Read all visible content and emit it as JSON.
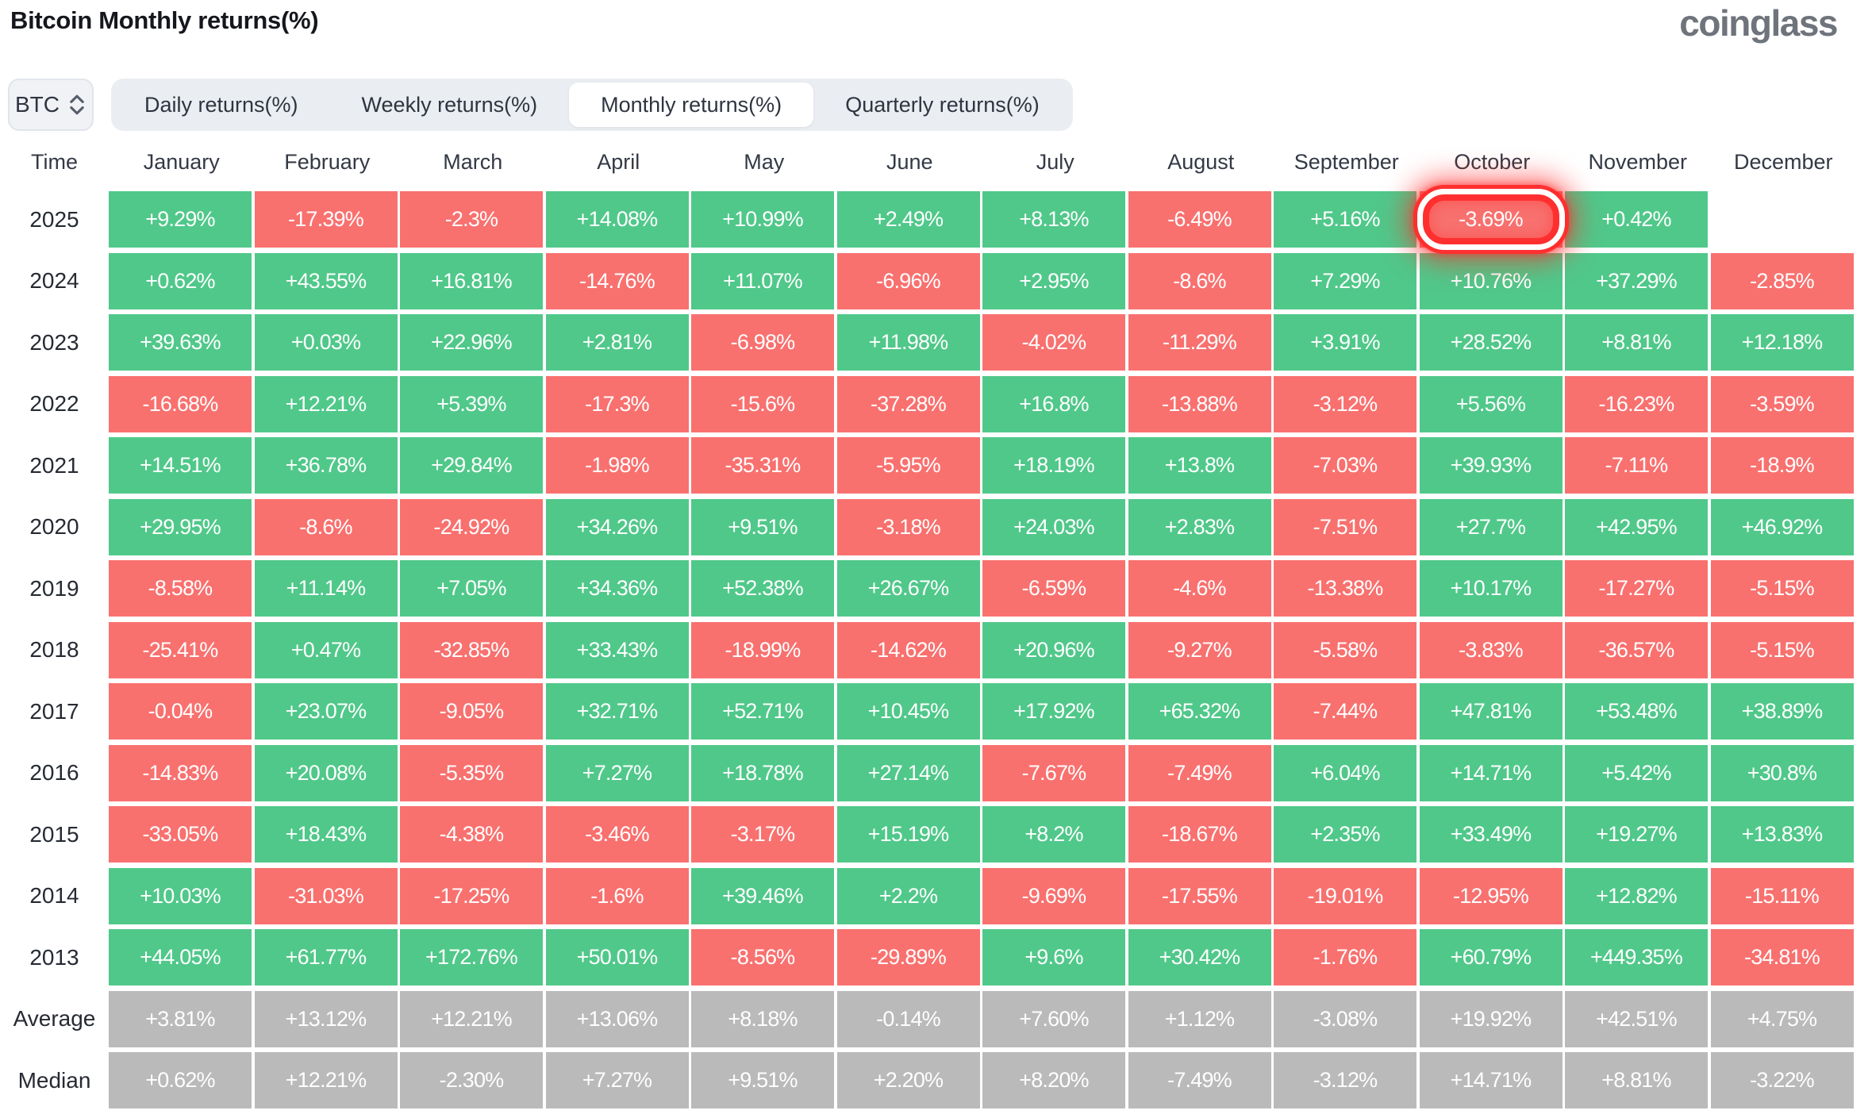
{
  "header": {
    "title": "Bitcoin Monthly returns(%)",
    "logo": "coinglass"
  },
  "controls": {
    "symbol_select": {
      "value": "BTC",
      "icon": "sort-updown-icon"
    },
    "tabs": [
      {
        "label": "Daily returns(%)",
        "active": false
      },
      {
        "label": "Weekly returns(%)",
        "active": false
      },
      {
        "label": "Monthly returns(%)",
        "active": true
      },
      {
        "label": "Quarterly returns(%)",
        "active": false
      }
    ]
  },
  "chart_data": {
    "type": "heatmap",
    "title": "Bitcoin Monthly returns(%)",
    "unit": "%",
    "legend_position": "none",
    "grid": false,
    "columns": [
      "Time",
      "January",
      "February",
      "March",
      "April",
      "May",
      "June",
      "July",
      "August",
      "September",
      "October",
      "November",
      "December"
    ],
    "rows": [
      {
        "label": "2025",
        "type": "year",
        "values": [
          "+9.29%",
          "-17.39%",
          "-2.3%",
          "+14.08%",
          "+10.99%",
          "+2.49%",
          "+8.13%",
          "-6.49%",
          "+5.16%",
          "-3.69%",
          "+0.42%",
          ""
        ]
      },
      {
        "label": "2024",
        "type": "year",
        "values": [
          "+0.62%",
          "+43.55%",
          "+16.81%",
          "-14.76%",
          "+11.07%",
          "-6.96%",
          "+2.95%",
          "-8.6%",
          "+7.29%",
          "+10.76%",
          "+37.29%",
          "-2.85%"
        ]
      },
      {
        "label": "2023",
        "type": "year",
        "values": [
          "+39.63%",
          "+0.03%",
          "+22.96%",
          "+2.81%",
          "-6.98%",
          "+11.98%",
          "-4.02%",
          "-11.29%",
          "+3.91%",
          "+28.52%",
          "+8.81%",
          "+12.18%"
        ]
      },
      {
        "label": "2022",
        "type": "year",
        "values": [
          "-16.68%",
          "+12.21%",
          "+5.39%",
          "-17.3%",
          "-15.6%",
          "-37.28%",
          "+16.8%",
          "-13.88%",
          "-3.12%",
          "+5.56%",
          "-16.23%",
          "-3.59%"
        ]
      },
      {
        "label": "2021",
        "type": "year",
        "values": [
          "+14.51%",
          "+36.78%",
          "+29.84%",
          "-1.98%",
          "-35.31%",
          "-5.95%",
          "+18.19%",
          "+13.8%",
          "-7.03%",
          "+39.93%",
          "-7.11%",
          "-18.9%"
        ]
      },
      {
        "label": "2020",
        "type": "year",
        "values": [
          "+29.95%",
          "-8.6%",
          "-24.92%",
          "+34.26%",
          "+9.51%",
          "-3.18%",
          "+24.03%",
          "+2.83%",
          "-7.51%",
          "+27.7%",
          "+42.95%",
          "+46.92%"
        ]
      },
      {
        "label": "2019",
        "type": "year",
        "values": [
          "-8.58%",
          "+11.14%",
          "+7.05%",
          "+34.36%",
          "+52.38%",
          "+26.67%",
          "-6.59%",
          "-4.6%",
          "-13.38%",
          "+10.17%",
          "-17.27%",
          "-5.15%"
        ]
      },
      {
        "label": "2018",
        "type": "year",
        "values": [
          "-25.41%",
          "+0.47%",
          "-32.85%",
          "+33.43%",
          "-18.99%",
          "-14.62%",
          "+20.96%",
          "-9.27%",
          "-5.58%",
          "-3.83%",
          "-36.57%",
          "-5.15%"
        ]
      },
      {
        "label": "2017",
        "type": "year",
        "values": [
          "-0.04%",
          "+23.07%",
          "-9.05%",
          "+32.71%",
          "+52.71%",
          "+10.45%",
          "+17.92%",
          "+65.32%",
          "-7.44%",
          "+47.81%",
          "+53.48%",
          "+38.89%"
        ]
      },
      {
        "label": "2016",
        "type": "year",
        "values": [
          "-14.83%",
          "+20.08%",
          "-5.35%",
          "+7.27%",
          "+18.78%",
          "+27.14%",
          "-7.67%",
          "-7.49%",
          "+6.04%",
          "+14.71%",
          "+5.42%",
          "+30.8%"
        ]
      },
      {
        "label": "2015",
        "type": "year",
        "values": [
          "-33.05%",
          "+18.43%",
          "-4.38%",
          "-3.46%",
          "-3.17%",
          "+15.19%",
          "+8.2%",
          "-18.67%",
          "+2.35%",
          "+33.49%",
          "+19.27%",
          "+13.83%"
        ]
      },
      {
        "label": "2014",
        "type": "year",
        "values": [
          "+10.03%",
          "-31.03%",
          "-17.25%",
          "-1.6%",
          "+39.46%",
          "+2.2%",
          "-9.69%",
          "-17.55%",
          "-19.01%",
          "-12.95%",
          "+12.82%",
          "-15.11%"
        ]
      },
      {
        "label": "2013",
        "type": "year",
        "values": [
          "+44.05%",
          "+61.77%",
          "+172.76%",
          "+50.01%",
          "-8.56%",
          "-29.89%",
          "+9.6%",
          "+30.42%",
          "-1.76%",
          "+60.79%",
          "+449.35%",
          "-34.81%"
        ]
      },
      {
        "label": "Average",
        "type": "summary",
        "values": [
          "+3.81%",
          "+13.12%",
          "+12.21%",
          "+13.06%",
          "+8.18%",
          "-0.14%",
          "+7.60%",
          "+1.12%",
          "-3.08%",
          "+19.92%",
          "+42.51%",
          "+4.75%"
        ]
      },
      {
        "label": "Median",
        "type": "summary",
        "values": [
          "+0.62%",
          "+12.21%",
          "-2.30%",
          "+7.27%",
          "+9.51%",
          "+2.20%",
          "+8.20%",
          "-7.49%",
          "-3.12%",
          "+14.71%",
          "+8.81%",
          "-3.22%"
        ]
      }
    ],
    "highlight": {
      "row": "2025",
      "column": "October",
      "value": "-3.69%"
    },
    "colors": {
      "positive": "#50c88a",
      "negative": "#f8716f",
      "summary": "#bababa",
      "highlight_ring": "#ff2b2b"
    }
  }
}
